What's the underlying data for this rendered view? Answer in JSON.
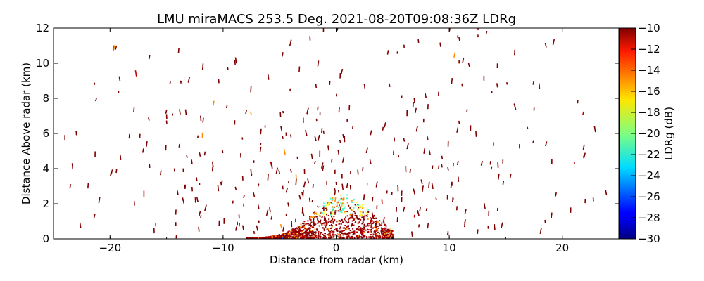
{
  "chart_data": {
    "type": "heatmap",
    "title": "LMU miraMACS 253.5 Deg. 2021-08-20T09:08:36Z  LDRg",
    "xlabel": "Distance from radar (km)",
    "ylabel": "Distance Above radar  (km)",
    "xlim": [
      -25,
      25
    ],
    "ylim": [
      0,
      12
    ],
    "x_ticks": [
      "−20",
      "−10",
      "0",
      "10",
      "20"
    ],
    "x_tick_values": [
      -20,
      -10,
      0,
      10,
      20
    ],
    "y_ticks": [
      "0",
      "2",
      "4",
      "6",
      "8",
      "10",
      "12"
    ],
    "y_tick_values": [
      0,
      2,
      4,
      6,
      8,
      10,
      12
    ],
    "colorbar": {
      "label": "LDRg (dB)",
      "range": [
        -30,
        -10
      ],
      "ticks": [
        "−10",
        "−12",
        "−14",
        "−16",
        "−18",
        "−20",
        "−22",
        "−24",
        "−26",
        "−28",
        "−30"
      ],
      "tick_values": [
        -10,
        -12,
        -14,
        -16,
        -18,
        -20,
        -22,
        -24,
        -26,
        -28,
        -30
      ],
      "colormap": "jet"
    },
    "grid": false,
    "pattern": {
      "scan_angle_deg": 253.5,
      "description_features": {
        "dense_low_level_x_km": [
          -8,
          5
        ],
        "dense_low_level_height_km": [
          0,
          2.5
        ],
        "sparse_range_rings": true
      }
    },
    "colors": {
      "dominant_echo": "#7f0000",
      "echo_orange": "#ff8c00",
      "echo_yellow": "#ffff40",
      "echo_cyan": "#40ffc0",
      "echo_blue": "#1a5cff"
    }
  }
}
